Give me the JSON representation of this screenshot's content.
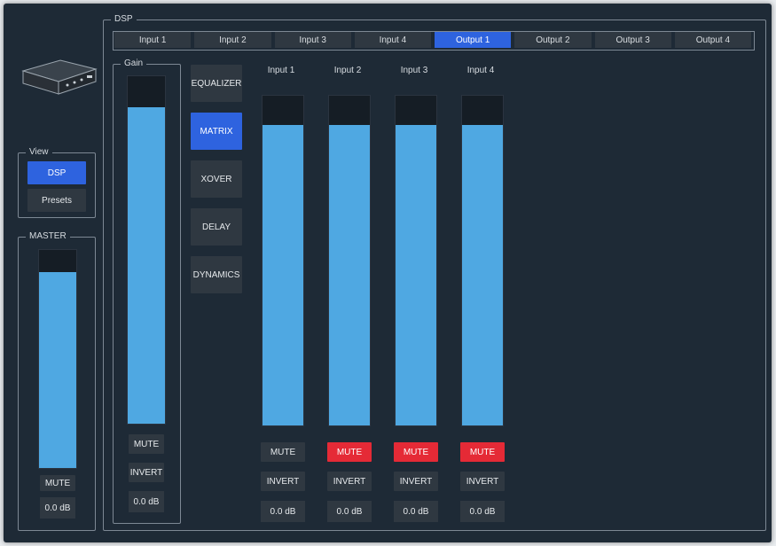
{
  "device_image": "dsp-hardware-unit-icon",
  "view": {
    "legend": "View",
    "buttons": [
      {
        "label": "DSP",
        "active": true
      },
      {
        "label": "Presets",
        "active": false
      }
    ]
  },
  "master": {
    "legend": "MASTER",
    "level": 0.9,
    "mute_label": "MUTE",
    "value": "0.0 dB"
  },
  "dsp": {
    "legend": "DSP",
    "tabs": [
      {
        "label": "Input 1",
        "active": false
      },
      {
        "label": "Input 2",
        "active": false
      },
      {
        "label": "Input 3",
        "active": false
      },
      {
        "label": "Input 4",
        "active": false
      },
      {
        "label": "Output 1",
        "active": true
      },
      {
        "label": "Output 2",
        "active": false
      },
      {
        "label": "Output 3",
        "active": false
      },
      {
        "label": "Output 4",
        "active": false
      }
    ],
    "gain": {
      "legend": "Gain",
      "level": 0.91,
      "mute_label": "MUTE",
      "invert_label": "INVERT",
      "value": "0.0 dB"
    },
    "modes": [
      {
        "label": "EQUALIZER",
        "active": false
      },
      {
        "label": "MATRIX",
        "active": true
      },
      {
        "label": "XOVER",
        "active": false
      },
      {
        "label": "DELAY",
        "active": false
      },
      {
        "label": "DYNAMICS",
        "active": false
      }
    ],
    "matrix_channels": [
      {
        "label": "Input 1",
        "level": 0.91,
        "mute_label": "MUTE",
        "muted": false,
        "invert_label": "INVERT",
        "value": "0.0 dB"
      },
      {
        "label": "Input 2",
        "level": 0.91,
        "mute_label": "MUTE",
        "muted": true,
        "invert_label": "INVERT",
        "value": "0.0 dB"
      },
      {
        "label": "Input 3",
        "level": 0.91,
        "mute_label": "MUTE",
        "muted": true,
        "invert_label": "INVERT",
        "value": "0.0 dB"
      },
      {
        "label": "Input 4",
        "level": 0.91,
        "mute_label": "MUTE",
        "muted": true,
        "invert_label": "INVERT",
        "value": "0.0 dB"
      }
    ]
  },
  "colors": {
    "background": "#1e2a36",
    "button": "#2f3841",
    "active": "#2e63df",
    "mute_active": "#e52a36",
    "fader_fill": "#4fa8e2"
  }
}
